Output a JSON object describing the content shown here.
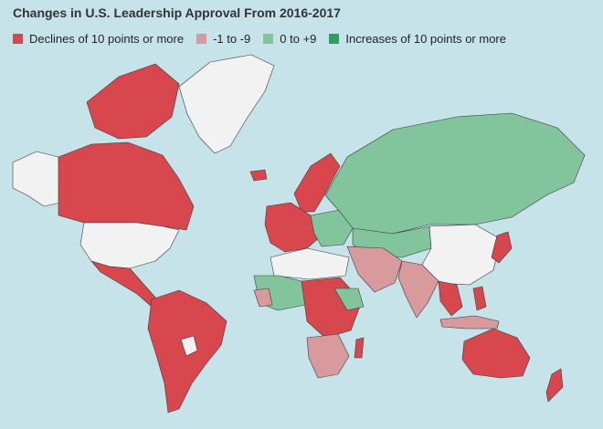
{
  "title": "Changes in U.S. Leadership Approval From 2016-2017",
  "colors": {
    "ocean": "#c6e3ea",
    "decline_large": "#d9474e",
    "decline_small": "#d99a9e",
    "increase_small": "#82c49c",
    "increase_large": "#2e9e5c",
    "no_data": "#f2f2f2"
  },
  "legend": [
    {
      "label": "Declines of 10 points or more",
      "color": "#d9474e"
    },
    {
      "label": "-1 to -9",
      "color": "#d99a9e"
    },
    {
      "label": "0 to +9",
      "color": "#82c49c"
    },
    {
      "label": "Increases of 10 points or more",
      "color": "#2e9e5c"
    }
  ]
}
